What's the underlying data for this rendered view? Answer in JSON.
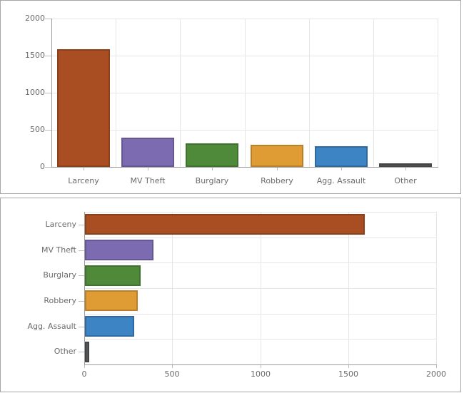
{
  "colors": {
    "background": "#ffffff",
    "panel_border": "#a6a6a6",
    "text": "#6b6b6b",
    "axis": "#9c9c9c",
    "grid": "#e6e6e6",
    "tick": "#bdbdbd"
  },
  "chart_data": [
    {
      "type": "bar",
      "orientation": "vertical",
      "title": "",
      "xlabel": "",
      "ylabel": "",
      "categories": [
        "Larceny",
        "MV Theft",
        "Burglary",
        "Robbery",
        "Agg. Assault",
        "Other"
      ],
      "values": [
        1590,
        390,
        315,
        300,
        280,
        25
      ],
      "value_axis": {
        "min": 0,
        "max": 2000,
        "step": 500,
        "tick_labels": [
          "0",
          "500",
          "1000",
          "1500",
          "2000"
        ]
      },
      "grid": true,
      "legend": false,
      "bar_colors": [
        {
          "fill": "#A84E22",
          "border": "#8C3F1B"
        },
        {
          "fill": "#7C6BB1",
          "border": "#655694"
        },
        {
          "fill": "#4F8A3B",
          "border": "#40712F"
        },
        {
          "fill": "#E09C34",
          "border": "#BA7F28"
        },
        {
          "fill": "#3D84C5",
          "border": "#30699E"
        },
        {
          "fill": "#57585A",
          "border": "#434445"
        }
      ]
    },
    {
      "type": "bar",
      "orientation": "horizontal",
      "title": "",
      "xlabel": "",
      "ylabel": "",
      "categories": [
        "Larceny",
        "MV Theft",
        "Burglary",
        "Robbery",
        "Agg. Assault",
        "Other"
      ],
      "values": [
        1590,
        390,
        315,
        300,
        280,
        25
      ],
      "value_axis": {
        "min": 0,
        "max": 2000,
        "step": 500,
        "tick_labels": [
          "0",
          "500",
          "1000",
          "1500",
          "2000"
        ]
      },
      "grid": true,
      "legend": false,
      "bar_colors": [
        {
          "fill": "#A84E22",
          "border": "#8C3F1B"
        },
        {
          "fill": "#7C6BB1",
          "border": "#655694"
        },
        {
          "fill": "#4F8A3B",
          "border": "#40712F"
        },
        {
          "fill": "#E09C34",
          "border": "#BA7F28"
        },
        {
          "fill": "#3D84C5",
          "border": "#30699E"
        },
        {
          "fill": "#57585A",
          "border": "#434445"
        }
      ]
    }
  ]
}
